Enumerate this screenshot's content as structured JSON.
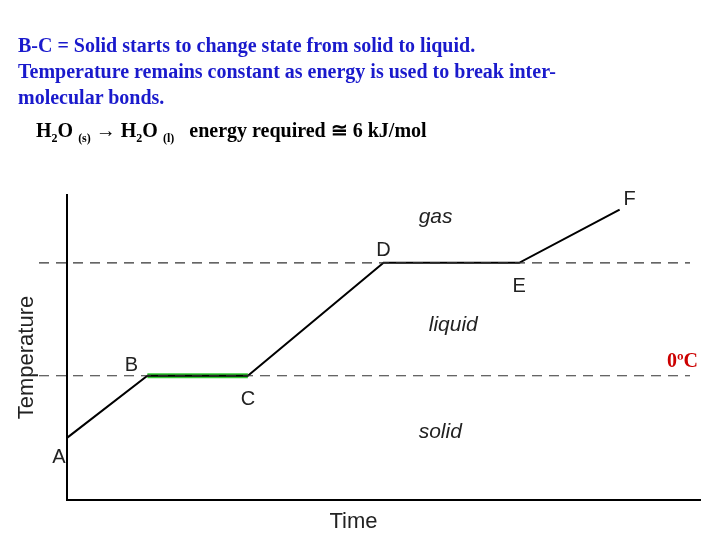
{
  "chart_data": {
    "type": "line",
    "title": [
      "B-C = Solid starts to change state from solid to liquid.",
      "Temperature remains constant as energy is used to break inter-",
      "molecular bonds."
    ],
    "subtitle": [
      {
        "text": "H"
      },
      {
        "text": "2",
        "sub": true
      },
      {
        "text": "O "
      },
      {
        "text": "(s)",
        "sub": true
      },
      {
        "text": " → H"
      },
      {
        "text": "2",
        "sub": true
      },
      {
        "text": "O "
      },
      {
        "text": "(l)",
        "sub": true
      },
      {
        "text": "   energy required ≅ 6 kJ/mol"
      }
    ],
    "x_label": "Time",
    "y_label": "Temperature",
    "x": [
      0,
      8,
      18,
      31.5,
      45,
      55
    ],
    "point_labels": [
      "A",
      "B",
      "C",
      "D",
      "E",
      "F"
    ],
    "series": [
      {
        "color": "#000000",
        "values": [
          -55,
          0,
          0,
          100,
          100,
          147
        ]
      },
      {
        "color": "#33cc33",
        "values": [
          null,
          0,
          0,
          null,
          null,
          null
        ]
      }
    ],
    "xlim": [
      0,
      63
    ],
    "ylim": [
      -110,
      160
    ],
    "tick_labels": false,
    "grid": false,
    "annotations": {
      "lines": [
        {
          "y": 0,
          "label": "0ºC",
          "color": "#cc0000"
        },
        {
          "y": 100
        }
      ],
      "regions": [
        {
          "label": "gas",
          "x": 35,
          "y": 140
        },
        {
          "label": "liquid",
          "x": 36,
          "y": 45
        },
        {
          "label": "solid",
          "x": 35,
          "y": -50
        }
      ]
    }
  }
}
